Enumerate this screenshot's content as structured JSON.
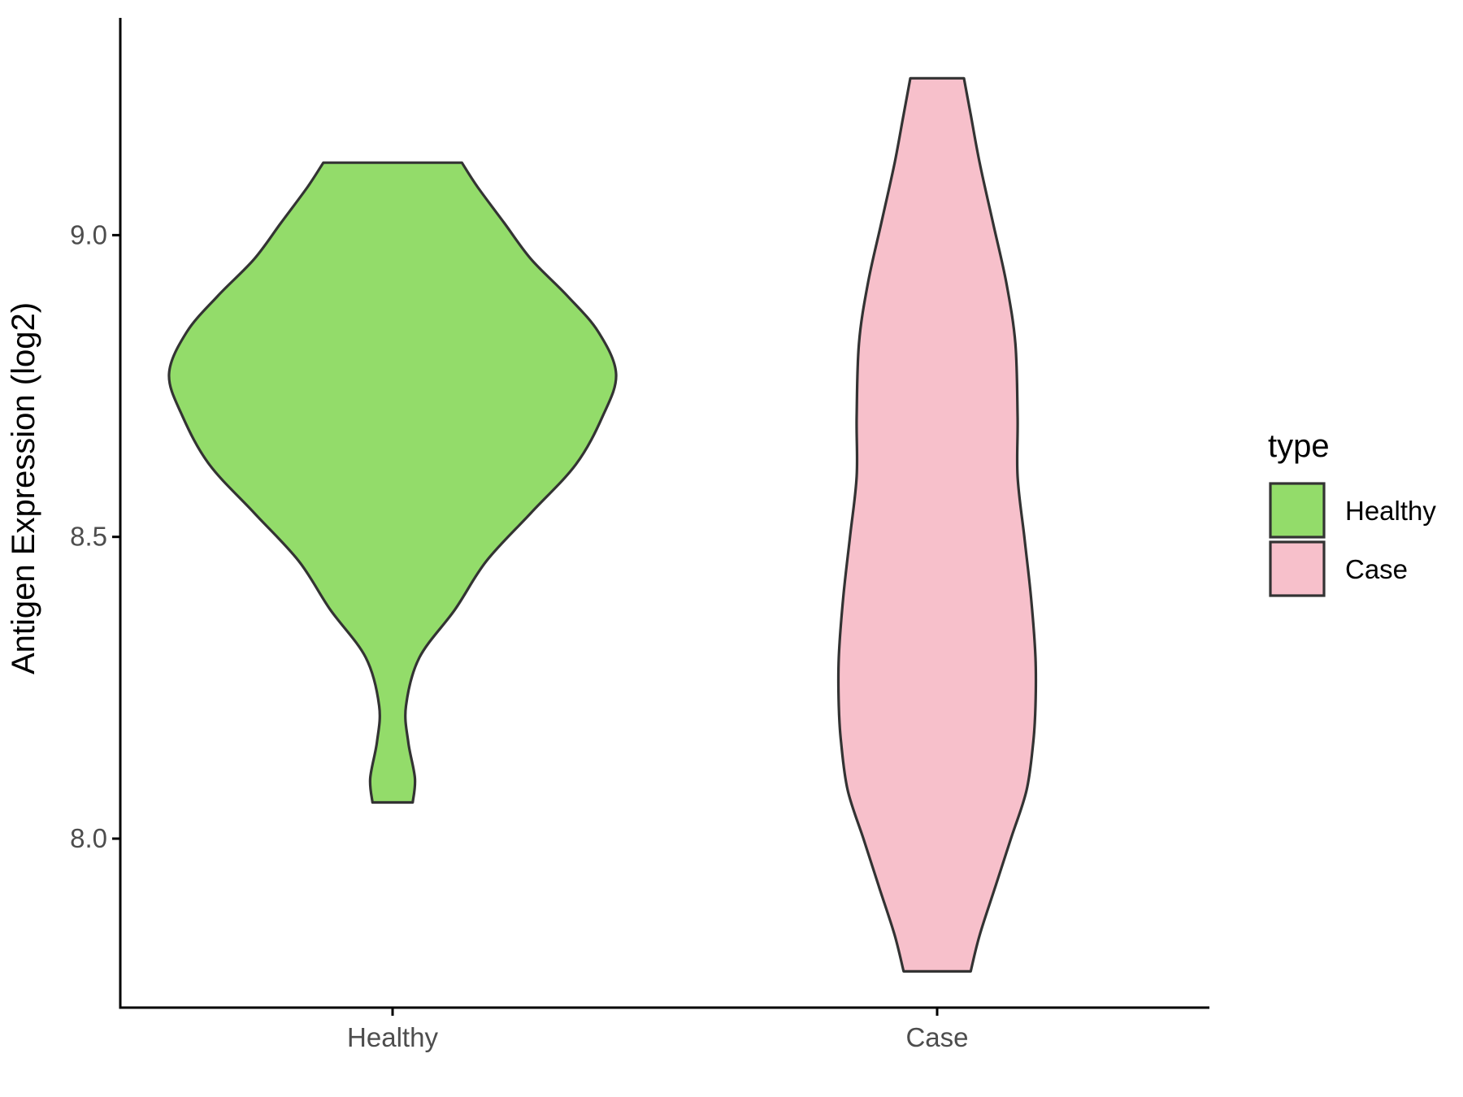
{
  "chart_data": {
    "type": "violin",
    "title": "",
    "xlabel": "",
    "ylabel": "Antigen Expression (log2)",
    "categories": [
      "Healthy",
      "Case"
    ],
    "ylim": [
      7.72,
      9.36
    ],
    "yticks": [
      "8.0",
      "8.5",
      "9.0"
    ],
    "grid": false,
    "legend": {
      "title": "type",
      "placement": "right",
      "entries": [
        {
          "label": "Healthy",
          "color": "#93dc6a"
        },
        {
          "label": "Case",
          "color": "#f7c0cb"
        }
      ]
    },
    "series": [
      {
        "name": "Healthy",
        "color": "#93dc6a",
        "min": 8.06,
        "max": 9.12,
        "profile": [
          {
            "y": 8.06,
            "w": 0.09
          },
          {
            "y": 8.1,
            "w": 0.1
          },
          {
            "y": 8.16,
            "w": 0.07
          },
          {
            "y": 8.22,
            "w": 0.06
          },
          {
            "y": 8.3,
            "w": 0.12
          },
          {
            "y": 8.38,
            "w": 0.28
          },
          {
            "y": 8.46,
            "w": 0.42
          },
          {
            "y": 8.54,
            "w": 0.62
          },
          {
            "y": 8.62,
            "w": 0.82
          },
          {
            "y": 8.7,
            "w": 0.94
          },
          {
            "y": 8.77,
            "w": 1.0
          },
          {
            "y": 8.84,
            "w": 0.92
          },
          {
            "y": 8.9,
            "w": 0.78
          },
          {
            "y": 8.96,
            "w": 0.62
          },
          {
            "y": 9.02,
            "w": 0.5
          },
          {
            "y": 9.08,
            "w": 0.38
          },
          {
            "y": 9.12,
            "w": 0.31
          }
        ]
      },
      {
        "name": "Case",
        "color": "#f7c0cb",
        "min": 7.78,
        "max": 9.26,
        "profile": [
          {
            "y": 7.78,
            "w": 0.15
          },
          {
            "y": 7.84,
            "w": 0.19
          },
          {
            "y": 7.92,
            "w": 0.26
          },
          {
            "y": 8.0,
            "w": 0.33
          },
          {
            "y": 8.08,
            "w": 0.4
          },
          {
            "y": 8.16,
            "w": 0.43
          },
          {
            "y": 8.22,
            "w": 0.44
          },
          {
            "y": 8.3,
            "w": 0.44
          },
          {
            "y": 8.4,
            "w": 0.42
          },
          {
            "y": 8.5,
            "w": 0.39
          },
          {
            "y": 8.6,
            "w": 0.36
          },
          {
            "y": 8.7,
            "w": 0.36
          },
          {
            "y": 8.82,
            "w": 0.35
          },
          {
            "y": 8.92,
            "w": 0.31
          },
          {
            "y": 9.02,
            "w": 0.25
          },
          {
            "y": 9.12,
            "w": 0.19
          },
          {
            "y": 9.2,
            "w": 0.15
          },
          {
            "y": 9.26,
            "w": 0.12
          }
        ]
      }
    ]
  }
}
